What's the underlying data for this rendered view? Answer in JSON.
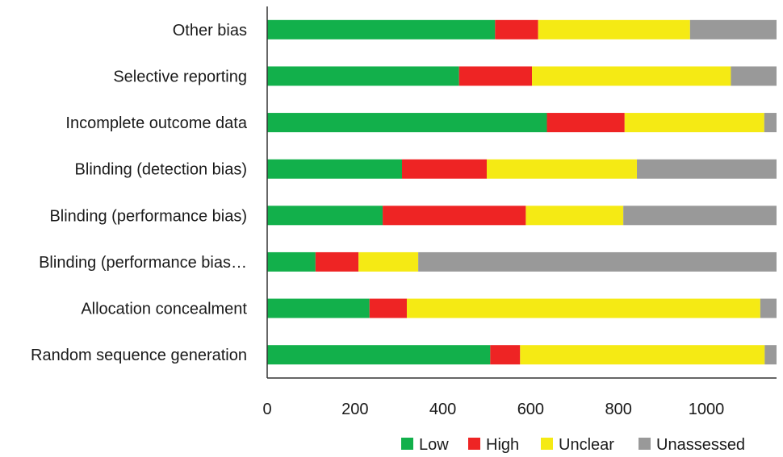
{
  "chart_data": {
    "type": "bar",
    "orientation": "horizontal",
    "stacked": true,
    "title": "",
    "xlabel": "",
    "ylabel": "",
    "xlim": [
      0,
      1160
    ],
    "xticks": [
      0,
      200,
      400,
      600,
      800,
      1000
    ],
    "grid": false,
    "legend_position": "bottom-right",
    "categories": [
      "Other bias",
      "Selective reporting",
      "Incomplete outcome data",
      "Blinding (detection bias)",
      "Blinding (performance bias)",
      "Blinding (performance bias…",
      "Allocation concealment",
      "Random sequence generation"
    ],
    "series": [
      {
        "name": "Low",
        "color": "#12b04b",
        "values": [
          519,
          437,
          637,
          307,
          263,
          110,
          233,
          508
        ]
      },
      {
        "name": "High",
        "color": "#ee2424",
        "values": [
          98,
          166,
          177,
          193,
          326,
          98,
          85,
          68
        ]
      },
      {
        "name": "Unclear",
        "color": "#f5ea14",
        "values": [
          346,
          453,
          318,
          342,
          222,
          136,
          805,
          557
        ]
      },
      {
        "name": "Unassessed",
        "color": "#999999",
        "values": [
          197,
          104,
          28,
          318,
          349,
          816,
          37,
          27
        ]
      }
    ]
  }
}
